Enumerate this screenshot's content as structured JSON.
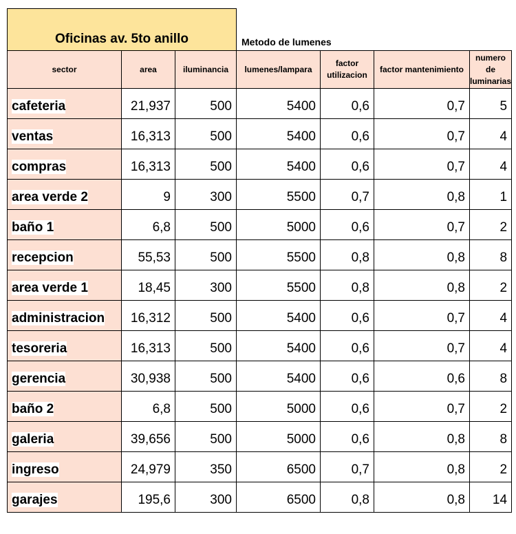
{
  "title": "Oficinas av. 5to anillo",
  "subtitle": "Metodo de lumenes",
  "columns": [
    "sector",
    "area",
    "iluminancia",
    "lumenes/lampara",
    "factor utilizacion",
    "factor mantenimiento",
    "numero de luminarias"
  ],
  "rows": [
    [
      "cafeteria",
      "21,937",
      "500",
      "5400",
      "0,6",
      "0,7",
      "5"
    ],
    [
      "ventas",
      "16,313",
      "500",
      "5400",
      "0,6",
      "0,7",
      "4"
    ],
    [
      "compras",
      "16,313",
      "500",
      "5400",
      "0,6",
      "0,7",
      "4"
    ],
    [
      "area verde 2",
      "9",
      "300",
      "5500",
      "0,7",
      "0,8",
      "1"
    ],
    [
      "baño 1",
      "6,8",
      "500",
      "5000",
      "0,6",
      "0,7",
      "2"
    ],
    [
      "recepcion",
      "55,53",
      "500",
      "5500",
      "0,8",
      "0,8",
      "8"
    ],
    [
      "area verde 1",
      "18,45",
      "300",
      "5500",
      "0,8",
      "0,8",
      "2"
    ],
    [
      "administracion",
      "16,312",
      "500",
      "5400",
      "0,6",
      "0,7",
      "4"
    ],
    [
      "tesoreria",
      "16,313",
      "500",
      "5400",
      "0,6",
      "0,7",
      "4"
    ],
    [
      "gerencia",
      "30,938",
      "500",
      "5400",
      "0,6",
      "0,6",
      "8"
    ],
    [
      "baño 2",
      "6,8",
      "500",
      "5000",
      "0,6",
      "0,7",
      "2"
    ],
    [
      "galeria",
      "39,656",
      "500",
      "5000",
      "0,6",
      "0,8",
      "8"
    ],
    [
      "ingreso",
      "24,979",
      "350",
      "6500",
      "0,7",
      "0,8",
      "2"
    ],
    [
      "garajes",
      "195,6",
      "300",
      "6500",
      "0,8",
      "0,8",
      "14"
    ]
  ],
  "colors": {
    "title_fill": "#fde49b",
    "header_fill": "#fde0d3",
    "sector_fill": "#fde0d3"
  }
}
